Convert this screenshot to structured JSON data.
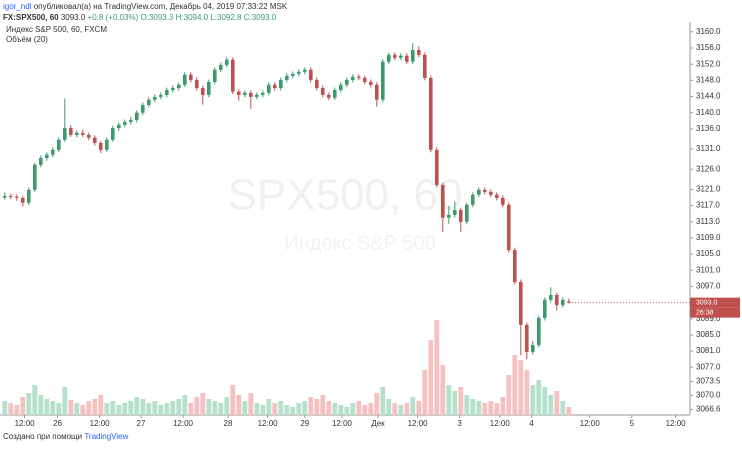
{
  "header": {
    "author": "igor_ndl",
    "published": "опубликовал(а) на TradingView.com, Декабрь 04, 2019 07:33:22 MSK",
    "symbol": "FX:SPX500, 60",
    "last": "3093.0",
    "change": "+0.8 (+0.03%)",
    "o": "O:3093.3",
    "h": "H:3094.0",
    "l": "L:3092.8",
    "c": "C:3093.0"
  },
  "footer": {
    "text": "Создано при помощи",
    "brand": "TradingView"
  },
  "chart_data": {
    "type": "candlestick",
    "title": "Индекс S&P 500, 60, FXCM",
    "volume_title": "Объём (20)",
    "watermark": "SPX500, 60",
    "watermark_sub": "Индекс S&P 500",
    "price_label": "3093.0",
    "timer": "26:38",
    "up_color": "#3c9a6e",
    "down_color": "#c0504d",
    "up_volume_color": "#b5e0cb",
    "down_volume_color": "#f5c0c0",
    "xlim": [
      -0.8,
      114.2
    ],
    "ylim": [
      3065.2,
      3165.4
    ],
    "xticks": [
      {
        "value": 3.3,
        "label": "12:00"
      },
      {
        "value": 8.8,
        "label": "26"
      },
      {
        "value": 15.8,
        "label": "12:00"
      },
      {
        "value": 22.7,
        "label": "27"
      },
      {
        "value": 29.7,
        "label": "12:00"
      },
      {
        "value": 37.2,
        "label": "28"
      },
      {
        "value": 43.8,
        "label": "12:00"
      },
      {
        "value": 50,
        "label": "29"
      },
      {
        "value": 56.2,
        "label": "12:00"
      },
      {
        "value": 62.2,
        "label": "Дек"
      },
      {
        "value": 68.8,
        "label": "12:00"
      },
      {
        "value": 75.8,
        "label": "3"
      },
      {
        "value": 82.5,
        "label": "12:00"
      },
      {
        "value": 87.8,
        "label": "4"
      },
      {
        "value": 97.5,
        "label": "12:00"
      },
      {
        "value": 104.5,
        "label": "5"
      },
      {
        "value": 111.8,
        "label": "12:00"
      }
    ],
    "yticks": [
      {
        "value": 3160,
        "label": "3160.0"
      },
      {
        "value": 3156,
        "label": "3156.0"
      },
      {
        "value": 3152,
        "label": "3152.0"
      },
      {
        "value": 3148,
        "label": "3148.0"
      },
      {
        "value": 3144,
        "label": "3144.0"
      },
      {
        "value": 3140,
        "label": "3140.0"
      },
      {
        "value": 3136,
        "label": "3136.0"
      },
      {
        "value": 3131,
        "label": "3131.0"
      },
      {
        "value": 3126,
        "label": "3126.0"
      },
      {
        "value": 3121,
        "label": "3121.0"
      },
      {
        "value": 3117,
        "label": "3117.0"
      },
      {
        "value": 3113,
        "label": "3113.0"
      },
      {
        "value": 3109,
        "label": "3109.0"
      },
      {
        "value": 3105,
        "label": "3105.0"
      },
      {
        "value": 3101,
        "label": "3101.0"
      },
      {
        "value": 3097,
        "label": "3097.0"
      },
      {
        "value": 3089,
        "label": "3089.0"
      },
      {
        "value": 3085,
        "label": "3085.0"
      },
      {
        "value": 3081,
        "label": "3081.0"
      },
      {
        "value": 3077,
        "label": "3077.0"
      },
      {
        "value": 3073.5,
        "label": "3073.5"
      },
      {
        "value": 3070,
        "label": "3070.0"
      },
      {
        "value": 3066.6,
        "label": "3066.6"
      }
    ],
    "ohlc": [
      [
        3119.0,
        3120.3,
        3118.5,
        3119.4
      ],
      [
        3119.4,
        3120.0,
        3118.6,
        3119.2
      ],
      [
        3119.2,
        3119.8,
        3118.2,
        3118.9
      ],
      [
        3118.9,
        3119.4,
        3116.8,
        3117.7
      ],
      [
        3117.7,
        3121.5,
        3117.2,
        3120.9
      ],
      [
        3120.9,
        3127.6,
        3120.4,
        3127.1
      ],
      [
        3127.1,
        3129.4,
        3126.5,
        3128.8
      ],
      [
        3128.8,
        3130.2,
        3128.1,
        3129.6
      ],
      [
        3129.6,
        3131.5,
        3129.0,
        3130.8
      ],
      [
        3130.8,
        3133.9,
        3130.2,
        3133.3
      ],
      [
        3133.3,
        3143.5,
        3132.8,
        3136.2
      ],
      [
        3136.2,
        3136.9,
        3134.0,
        3134.5
      ],
      [
        3134.5,
        3135.6,
        3133.9,
        3135.0
      ],
      [
        3135.0,
        3135.8,
        3134.0,
        3134.5
      ],
      [
        3134.5,
        3135.1,
        3133.2,
        3133.8
      ],
      [
        3133.8,
        3134.4,
        3131.9,
        3132.5
      ],
      [
        3132.5,
        3133.0,
        3130.0,
        3130.8
      ],
      [
        3130.8,
        3133.9,
        3130.3,
        3133.3
      ],
      [
        3133.3,
        3136.8,
        3132.8,
        3136.2
      ],
      [
        3136.2,
        3137.6,
        3135.5,
        3137.0
      ],
      [
        3137.0,
        3138.3,
        3136.4,
        3137.7
      ],
      [
        3137.7,
        3138.9,
        3137.1,
        3138.2
      ],
      [
        3138.2,
        3140.6,
        3137.6,
        3140.0
      ],
      [
        3140.0,
        3142.5,
        3139.4,
        3141.9
      ],
      [
        3141.9,
        3143.8,
        3141.3,
        3143.2
      ],
      [
        3143.2,
        3144.5,
        3142.6,
        3143.9
      ],
      [
        3143.9,
        3145.0,
        3143.3,
        3144.4
      ],
      [
        3144.4,
        3146.2,
        3143.8,
        3145.6
      ],
      [
        3145.6,
        3146.7,
        3145.0,
        3146.1
      ],
      [
        3146.1,
        3147.5,
        3145.5,
        3146.9
      ],
      [
        3146.9,
        3150.0,
        3146.3,
        3149.4
      ],
      [
        3149.4,
        3150.0,
        3147.5,
        3148.1
      ],
      [
        3148.1,
        3148.7,
        3145.5,
        3146.1
      ],
      [
        3146.1,
        3146.7,
        3142.0,
        3144.4
      ],
      [
        3144.4,
        3148.2,
        3143.8,
        3147.6
      ],
      [
        3147.6,
        3151.2,
        3147.0,
        3150.6
      ],
      [
        3150.6,
        3152.4,
        3150.0,
        3151.8
      ],
      [
        3151.8,
        3153.7,
        3151.2,
        3153.1
      ],
      [
        3153.1,
        3153.7,
        3144.6,
        3145.2
      ],
      [
        3145.2,
        3145.8,
        3143.0,
        3144.4
      ],
      [
        3144.4,
        3145.5,
        3143.8,
        3144.9
      ],
      [
        3144.9,
        3145.5,
        3141.0,
        3143.9
      ],
      [
        3143.9,
        3145.0,
        3143.3,
        3144.4
      ],
      [
        3144.4,
        3145.5,
        3143.8,
        3144.9
      ],
      [
        3144.9,
        3147.5,
        3144.3,
        3146.9
      ],
      [
        3146.9,
        3147.5,
        3145.5,
        3146.1
      ],
      [
        3146.1,
        3148.7,
        3145.5,
        3148.1
      ],
      [
        3148.1,
        3149.7,
        3147.5,
        3149.1
      ],
      [
        3149.1,
        3150.2,
        3148.5,
        3149.6
      ],
      [
        3149.6,
        3150.7,
        3149.0,
        3150.1
      ],
      [
        3150.1,
        3151.2,
        3149.5,
        3150.6
      ],
      [
        3150.6,
        3151.2,
        3147.5,
        3148.1
      ],
      [
        3148.1,
        3148.7,
        3145.5,
        3146.1
      ],
      [
        3146.1,
        3146.7,
        3143.8,
        3144.4
      ],
      [
        3144.4,
        3145.0,
        3143.1,
        3143.7
      ],
      [
        3143.7,
        3146.2,
        3143.1,
        3145.6
      ],
      [
        3145.6,
        3147.5,
        3145.0,
        3146.9
      ],
      [
        3146.9,
        3148.7,
        3146.3,
        3148.1
      ],
      [
        3148.1,
        3149.5,
        3147.5,
        3148.9
      ],
      [
        3148.9,
        3149.5,
        3148.0,
        3148.6
      ],
      [
        3148.6,
        3149.2,
        3147.0,
        3147.6
      ],
      [
        3147.6,
        3148.2,
        3146.3,
        3146.9
      ],
      [
        3146.9,
        3147.5,
        3141.5,
        3143.2
      ],
      [
        3143.2,
        3153.2,
        3142.6,
        3152.6
      ],
      [
        3152.6,
        3154.9,
        3152.0,
        3154.3
      ],
      [
        3154.3,
        3154.9,
        3153.0,
        3153.6
      ],
      [
        3153.6,
        3154.7,
        3153.0,
        3154.1
      ],
      [
        3154.1,
        3154.7,
        3152.0,
        3152.6
      ],
      [
        3152.6,
        3157.2,
        3152.0,
        3155.5
      ],
      [
        3155.5,
        3156.5,
        3153.7,
        3154.3
      ],
      [
        3154.3,
        3154.9,
        3148.0,
        3148.6
      ],
      [
        3148.6,
        3149.2,
        3130.2,
        3130.8
      ],
      [
        3130.8,
        3131.4,
        3121.5,
        3122.1
      ],
      [
        3122.1,
        3122.7,
        3110.5,
        3114.0
      ],
      [
        3114.0,
        3117.0,
        3112.5,
        3114.7
      ],
      [
        3114.7,
        3118.0,
        3114.1,
        3115.9
      ],
      [
        3115.9,
        3116.5,
        3110.5,
        3113.0
      ],
      [
        3113.0,
        3117.8,
        3112.4,
        3117.2
      ],
      [
        3117.2,
        3120.3,
        3116.6,
        3119.7
      ],
      [
        3119.7,
        3121.5,
        3119.1,
        3120.9
      ],
      [
        3120.9,
        3121.5,
        3119.8,
        3120.4
      ],
      [
        3120.4,
        3121.0,
        3119.1,
        3119.7
      ],
      [
        3119.7,
        3120.3,
        3118.3,
        3118.9
      ],
      [
        3118.9,
        3119.5,
        3116.6,
        3117.2
      ],
      [
        3117.2,
        3117.8,
        3105.4,
        3106.0
      ],
      [
        3106.0,
        3106.6,
        3097.5,
        3098.1
      ],
      [
        3098.1,
        3098.7,
        3080.0,
        3087.5
      ],
      [
        3087.5,
        3088.1,
        3079.0,
        3080.8
      ],
      [
        3080.8,
        3083.5,
        3080.2,
        3082.5
      ],
      [
        3082.5,
        3089.8,
        3081.9,
        3089.2
      ],
      [
        3089.2,
        3094.3,
        3088.6,
        3093.7
      ],
      [
        3093.7,
        3096.8,
        3093.1,
        3094.9
      ],
      [
        3094.9,
        3095.5,
        3091.0,
        3092.4
      ],
      [
        3092.4,
        3094.3,
        3091.8,
        3093.7
      ],
      [
        3093.3,
        3094.0,
        3092.8,
        3093.0
      ]
    ],
    "volume": [
      14,
      12,
      10,
      18,
      22,
      30,
      20,
      16,
      14,
      12,
      28,
      15,
      12,
      10,
      14,
      16,
      20,
      12,
      14,
      10,
      12,
      14,
      18,
      16,
      12,
      14,
      10,
      12,
      14,
      16,
      20,
      12,
      18,
      22,
      16,
      14,
      12,
      18,
      30,
      20,
      14,
      22,
      12,
      10,
      16,
      12,
      14,
      10,
      8,
      12,
      14,
      18,
      16,
      20,
      14,
      12,
      10,
      8,
      12,
      14,
      10,
      12,
      22,
      28,
      16,
      12,
      10,
      12,
      18,
      14,
      45,
      75,
      95,
      50,
      30,
      24,
      28,
      20,
      16,
      14,
      12,
      14,
      12,
      18,
      40,
      60,
      55,
      45,
      30,
      35,
      28,
      20,
      24,
      14,
      8
    ]
  }
}
